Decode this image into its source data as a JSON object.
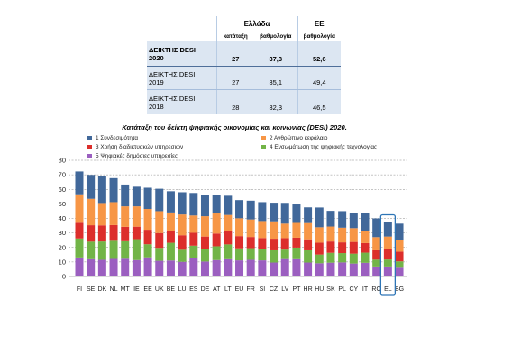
{
  "table": {
    "header": {
      "greece": "Ελλάδα",
      "eu": "ΕΕ"
    },
    "subheader": {
      "rank_gr": "κατάταξη",
      "score_gr": "βαθμολογία",
      "score_eu": "βαθμολογία"
    },
    "rows": [
      {
        "label": "ΔΕΙΚΤΗΣ DESI",
        "year": "2020",
        "rank_gr": "27",
        "score_gr": "37,3",
        "score_eu": "52,6"
      },
      {
        "label": "ΔΕΙΚΤΗΣ DESI",
        "year": "2019",
        "rank_gr": "27",
        "score_gr": "35,1",
        "score_eu": "49,4"
      },
      {
        "label": "ΔΕΙΚΤΗΣ DESI",
        "year": "2018",
        "rank_gr": "28",
        "score_gr": "32,3",
        "score_eu": "46,5"
      }
    ]
  },
  "chart_data": {
    "type": "bar",
    "stacked": true,
    "title": "Κατάταξη του δείκτη ψηφιακής οικονομίας και κοινωνίας (DESI) 2020.",
    "categories": [
      "FI",
      "SE",
      "DK",
      "NL",
      "MT",
      "IE",
      "EE",
      "UK",
      "BE",
      "LU",
      "ES",
      "DE",
      "AT",
      "LT",
      "EU",
      "FR",
      "SI",
      "CZ",
      "LV",
      "PT",
      "HR",
      "HU",
      "SK",
      "PL",
      "CY",
      "IT",
      "RO",
      "EL",
      "BG"
    ],
    "series": [
      {
        "name": "1 Συνδεσιμότητα",
        "color": "#41689a",
        "values": [
          15.7,
          16.4,
          18.5,
          16.5,
          15.0,
          13.5,
          14.6,
          15.4,
          14.6,
          15.3,
          15.5,
          14.6,
          12.3,
          13.2,
          12.5,
          12.9,
          13.0,
          12.8,
          14.3,
          12.7,
          10.8,
          13.6,
          10.8,
          11.4,
          10.7,
          12.5,
          12.9,
          9.8,
          11.0
        ]
      },
      {
        "name": "2 Ανθρώπινο κεφάλαιο",
        "color": "#f79646",
        "values": [
          19.6,
          18.2,
          15.4,
          15.8,
          14.1,
          14.0,
          14.3,
          15.1,
          12.6,
          14.3,
          11.9,
          14.0,
          14.1,
          11.4,
          12.3,
          12.1,
          11.7,
          12.0,
          10.0,
          10.2,
          11.2,
          10.6,
          10.3,
          10.1,
          9.5,
          8.1,
          9.1,
          8.8,
          8.3
        ]
      },
      {
        "name": "3 Χρήση διαδικτυακών υπηρεσιών",
        "color": "#dc2e2b",
        "values": [
          10.8,
          11.3,
          11.1,
          10.8,
          9.9,
          8.6,
          10.0,
          10.2,
          8.3,
          10.0,
          8.9,
          8.7,
          8.8,
          8.9,
          8.4,
          7.7,
          7.4,
          8.0,
          7.9,
          6.8,
          7.6,
          8.2,
          7.8,
          7.4,
          8.1,
          6.6,
          6.4,
          7.0,
          6.7
        ]
      },
      {
        "name": "4 Ενσωμάτωση της ψηφιακής τεχνολογίας",
        "color": "#72b447",
        "values": [
          13.1,
          12.1,
          12.6,
          12.5,
          12.1,
          14.4,
          9.0,
          8.9,
          12.2,
          8.3,
          8.3,
          8.5,
          9.5,
          10.2,
          8.3,
          8.0,
          8.0,
          8.4,
          6.5,
          8.0,
          8.4,
          6.0,
          6.8,
          6.4,
          6.8,
          7.0,
          4.7,
          4.8,
          4.4
        ]
      },
      {
        "name": "5 Ψηφιακές δημόσιες υπηρεσίες",
        "color": "#9b5fc0",
        "values": [
          13.1,
          11.9,
          11.5,
          12.1,
          12.2,
          11.3,
          13.2,
          10.8,
          11.0,
          10.1,
          12.9,
          10.3,
          11.3,
          11.9,
          11.1,
          11.5,
          11.1,
          9.6,
          12.0,
          11.9,
          9.6,
          9.1,
          9.5,
          9.7,
          8.9,
          9.4,
          6.9,
          6.9,
          6.0
        ]
      }
    ],
    "ylim": [
      0,
      80
    ],
    "yticks": [
      0,
      10,
      20,
      30,
      40,
      50,
      60,
      70,
      80
    ],
    "grid": true,
    "legend": "top",
    "highlight_color": "#2e75b6",
    "highlighted": [
      false,
      false,
      false,
      false,
      false,
      false,
      false,
      false,
      false,
      false,
      false,
      false,
      false,
      false,
      false,
      false,
      false,
      false,
      false,
      false,
      false,
      false,
      false,
      false,
      false,
      false,
      false,
      true,
      false
    ]
  }
}
